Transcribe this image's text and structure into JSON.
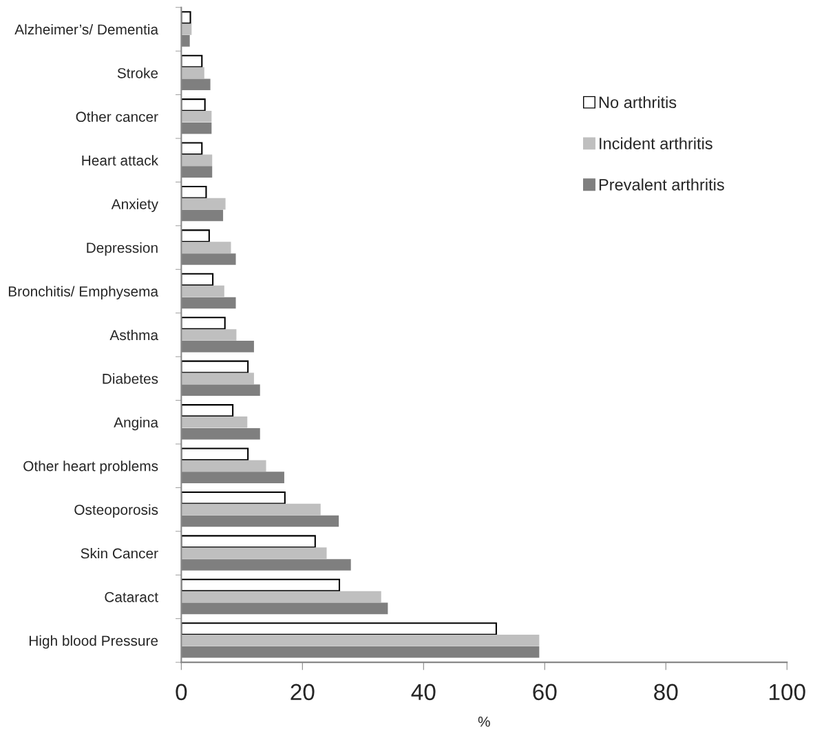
{
  "chart_data": {
    "type": "bar",
    "orientation": "horizontal",
    "xlabel": "%",
    "categories": [
      "Alzheimer’s/ Dementia",
      "Stroke",
      "Other cancer",
      "Heart attack",
      "Anxiety",
      "Depression",
      "Bronchitis/ Emphysema",
      "Asthma",
      "Diabetes",
      "Angina",
      "Other heart problems",
      "Osteoporosis",
      "Skin Cancer",
      "Cataract",
      "High blood Pressure"
    ],
    "series": [
      {
        "name": "No arthritis",
        "color": "#ffffff",
        "values": [
          1.5,
          3.4,
          3.9,
          3.4,
          4.1,
          4.6,
          5.2,
          7.2,
          11.0,
          8.5,
          11.0,
          17.1,
          22.1,
          26.1,
          52.0
        ]
      },
      {
        "name": "Incident arthritis",
        "color": "#bfbfbf",
        "values": [
          1.7,
          3.8,
          5.0,
          5.1,
          7.3,
          8.2,
          7.1,
          9.1,
          12.0,
          10.9,
          14.0,
          23.0,
          24.0,
          33.0,
          59.1
        ]
      },
      {
        "name": "Prevalent arthritis",
        "color": "#7f7f7f",
        "values": [
          1.4,
          4.8,
          5.0,
          5.1,
          6.9,
          9.0,
          9.0,
          12.0,
          13.0,
          13.0,
          17.0,
          26.0,
          28.0,
          34.1,
          59.1
        ]
      }
    ],
    "xlim": [
      0,
      100
    ],
    "xticks": [
      0,
      20,
      40,
      60,
      80,
      100
    ],
    "grid": false,
    "legend": "right"
  }
}
